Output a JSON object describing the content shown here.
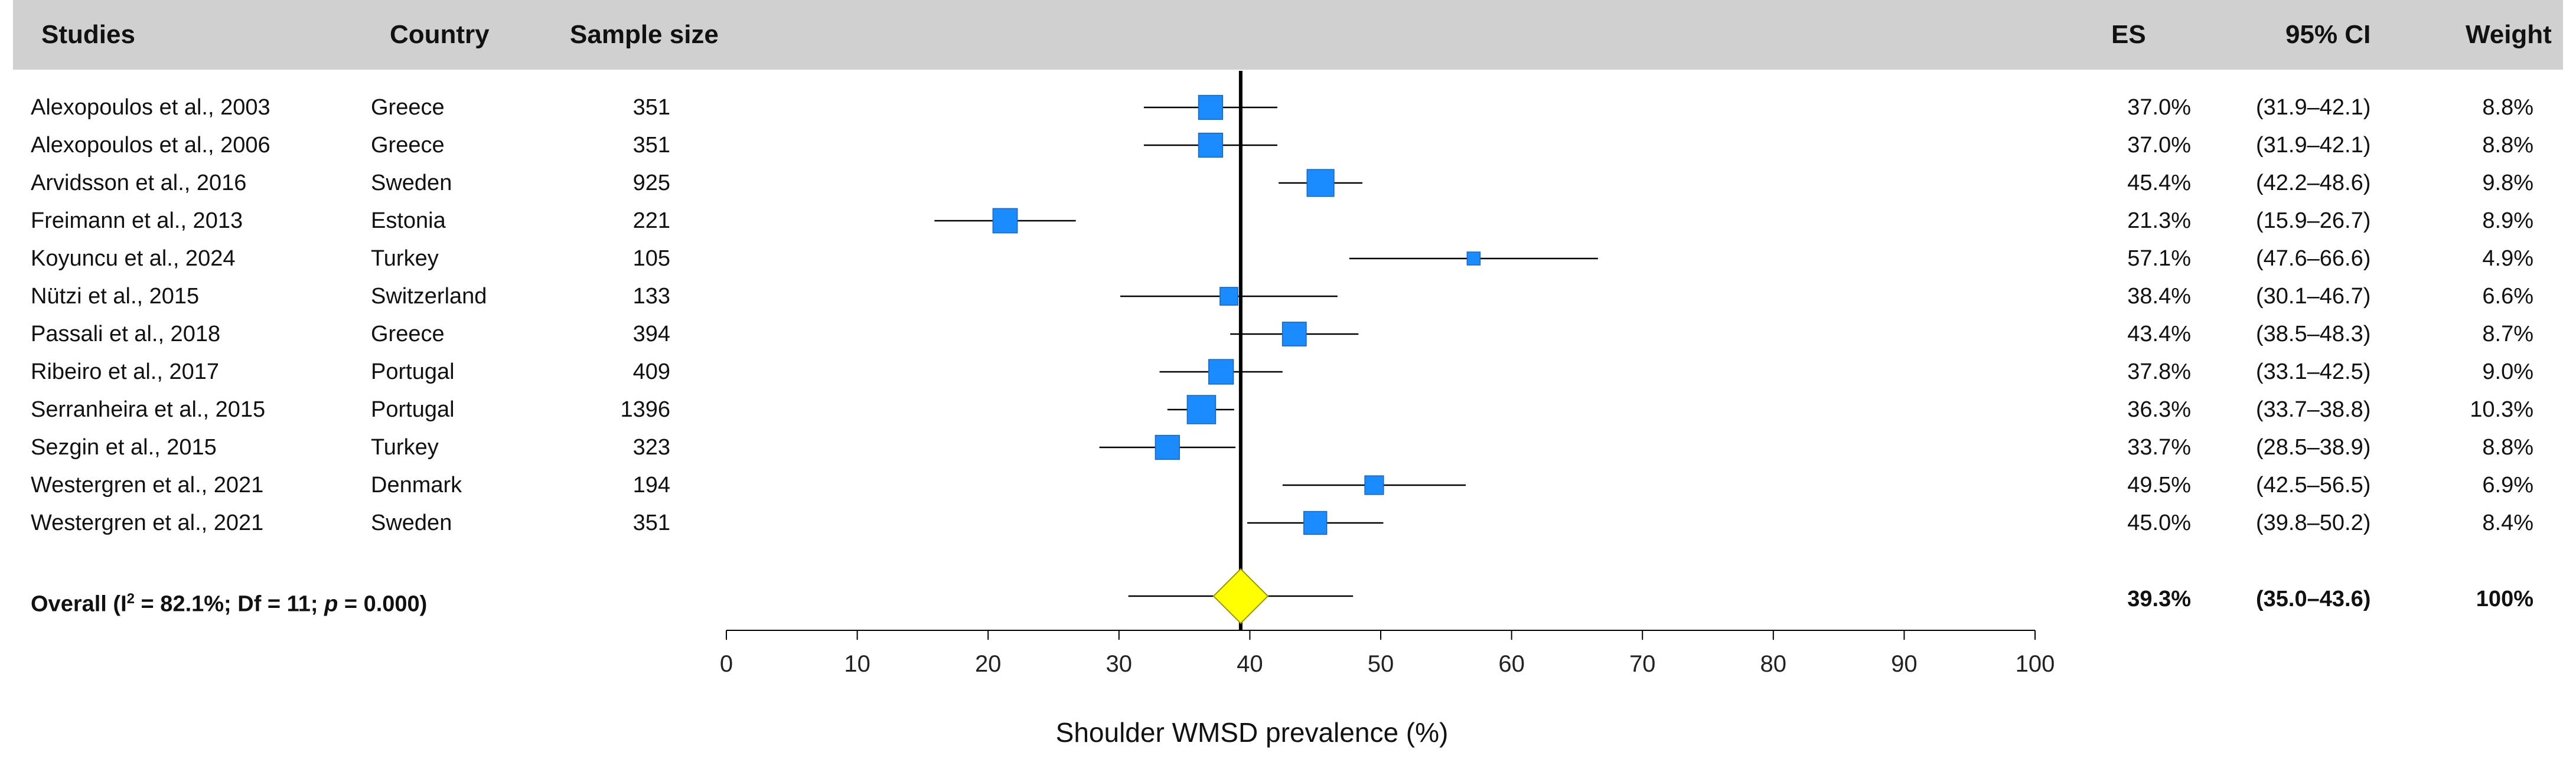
{
  "columns": {
    "studies": "Studies",
    "country": "Country",
    "sample_size": "Sample size",
    "es": "ES",
    "ci": "95% CI",
    "weight": "Weight"
  },
  "studies": [
    {
      "study": "Alexopoulos et al., 2003",
      "country": "Greece",
      "n": "351",
      "es": "37.0%",
      "ci": "(31.9–42.1)",
      "weight": "8.8%"
    },
    {
      "study": "Alexopoulos et al., 2006",
      "country": "Greece",
      "n": "351",
      "es": "37.0%",
      "ci": "(31.9–42.1)",
      "weight": "8.8%"
    },
    {
      "study": "Arvidsson et al., 2016",
      "country": "Sweden",
      "n": "925",
      "es": "45.4%",
      "ci": "(42.2–48.6)",
      "weight": "9.8%"
    },
    {
      "study": "Freimann et al., 2013",
      "country": "Estonia",
      "n": "221",
      "es": "21.3%",
      "ci": "(15.9–26.7)",
      "weight": "8.9%"
    },
    {
      "study": "Koyuncu et al., 2024",
      "country": "Turkey",
      "n": "105",
      "es": "57.1%",
      "ci": "(47.6–66.6)",
      "weight": "4.9%"
    },
    {
      "study": "Nützi et al., 2015",
      "country": "Switzerland",
      "n": "133",
      "es": "38.4%",
      "ci": "(30.1–46.7)",
      "weight": "6.6%"
    },
    {
      "study": "Passali et al., 2018",
      "country": "Greece",
      "n": "394",
      "es": "43.4%",
      "ci": "(38.5–48.3)",
      "weight": "8.7%"
    },
    {
      "study": "Ribeiro et al., 2017",
      "country": "Portugal",
      "n": "409",
      "es": "37.8%",
      "ci": "(33.1–42.5)",
      "weight": "9.0%"
    },
    {
      "study": "Serranheira et al., 2015",
      "country": "Portugal",
      "n": "1396",
      "es": "36.3%",
      "ci": "(33.7–38.8)",
      "weight": "10.3%"
    },
    {
      "study": "Sezgin et al., 2015",
      "country": "Turkey",
      "n": "323",
      "es": "33.7%",
      "ci": "(28.5–38.9)",
      "weight": "8.8%"
    },
    {
      "study": "Westergren et al., 2021",
      "country": "Denmark",
      "n": "194",
      "es": "49.5%",
      "ci": "(42.5–56.5)",
      "weight": "6.9%"
    },
    {
      "study": "Westergren et al., 2021",
      "country": "Sweden",
      "n": "351",
      "es": "45.0%",
      "ci": "(39.8–50.2)",
      "weight": "8.4%"
    }
  ],
  "overall": {
    "label_prefix": "Overall (I",
    "label_sup": "2",
    "label_mid": " = 82.1%;  Df = 11; ",
    "label_p": "p",
    "label_suffix": " = 0.000)",
    "es": "39.3%",
    "ci": "(35.0–43.6)",
    "weight": "100%"
  },
  "chart_data": {
    "type": "forest",
    "xlabel": "Shoulder WMSD prevalence (%)",
    "xlim": [
      0,
      100
    ],
    "xticks": [
      0,
      10,
      20,
      30,
      40,
      50,
      60,
      70,
      80,
      90,
      100
    ],
    "reference_line": 39.3,
    "marker_color": "#1a8cff",
    "diamond_color": "#ffff00",
    "points": [
      {
        "es": 37.0,
        "lo": 31.9,
        "hi": 42.1,
        "weight": 8.8
      },
      {
        "es": 37.0,
        "lo": 31.9,
        "hi": 42.1,
        "weight": 8.8
      },
      {
        "es": 45.4,
        "lo": 42.2,
        "hi": 48.6,
        "weight": 9.8
      },
      {
        "es": 21.3,
        "lo": 15.9,
        "hi": 26.7,
        "weight": 8.9
      },
      {
        "es": 57.1,
        "lo": 47.6,
        "hi": 66.6,
        "weight": 4.9
      },
      {
        "es": 38.4,
        "lo": 30.1,
        "hi": 46.7,
        "weight": 6.6
      },
      {
        "es": 43.4,
        "lo": 38.5,
        "hi": 48.3,
        "weight": 8.7
      },
      {
        "es": 37.8,
        "lo": 33.1,
        "hi": 42.5,
        "weight": 9.0
      },
      {
        "es": 36.3,
        "lo": 33.7,
        "hi": 38.8,
        "weight": 10.3
      },
      {
        "es": 33.7,
        "lo": 28.5,
        "hi": 38.9,
        "weight": 8.8
      },
      {
        "es": 49.5,
        "lo": 42.5,
        "hi": 56.5,
        "weight": 6.9
      },
      {
        "es": 45.0,
        "lo": 39.8,
        "hi": 50.2,
        "weight": 8.4
      }
    ],
    "overall": {
      "es": 39.3,
      "lo": 35.0,
      "hi": 43.6
    }
  }
}
